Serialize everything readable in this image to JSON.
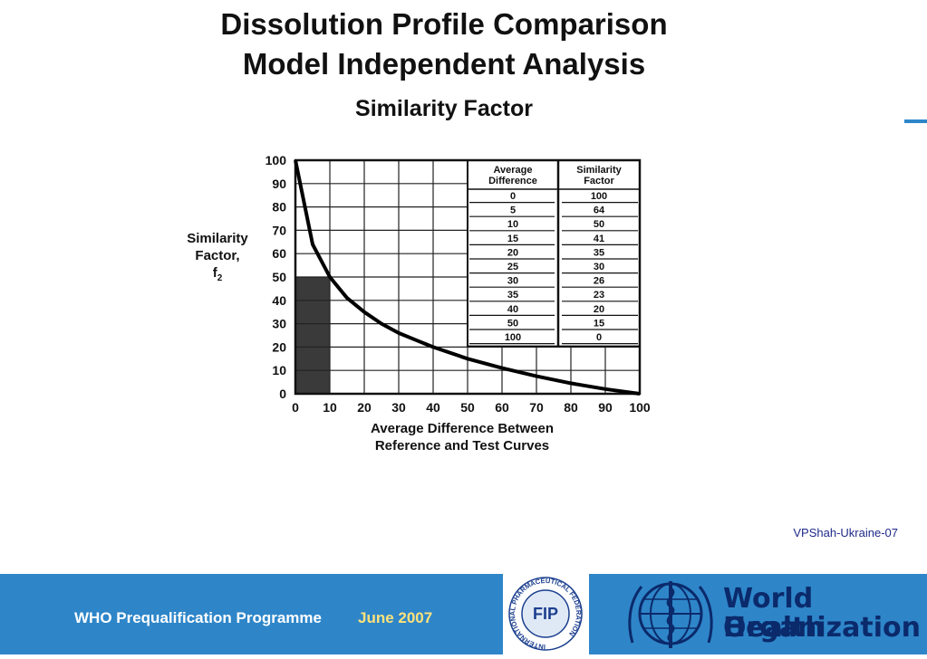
{
  "header": {
    "title_line1": "Dissolution Profile Comparison",
    "title_line2": "Model Independent Analysis",
    "subtitle": "Similarity Factor"
  },
  "chart_data": {
    "type": "line",
    "ylabel_line1": "Similarity",
    "ylabel_line2": "Factor,",
    "ylabel_symbol": "f",
    "ylabel_subscript": "2",
    "xlabel_line1": "Average Difference Between",
    "xlabel_line2": "Reference and Test Curves",
    "xlim": [
      0,
      100
    ],
    "ylim": [
      0,
      100
    ],
    "x_ticks": [
      "0",
      "10",
      "20",
      "30",
      "40",
      "50",
      "60",
      "70",
      "80",
      "90",
      "100"
    ],
    "y_ticks": [
      "0",
      "10",
      "20",
      "30",
      "40",
      "50",
      "60",
      "70",
      "80",
      "90",
      "100"
    ],
    "grid": true,
    "shaded_region": {
      "x": [
        0,
        10
      ],
      "y": [
        0,
        50
      ]
    },
    "curve": {
      "x": [
        0,
        5,
        10,
        15,
        20,
        25,
        30,
        35,
        40,
        50,
        60,
        70,
        80,
        90,
        100
      ],
      "y": [
        100,
        64,
        50,
        41,
        35,
        30,
        26,
        23,
        20,
        15,
        11,
        7.5,
        4.5,
        2,
        0
      ]
    },
    "table": {
      "headers": [
        [
          "Average",
          "Difference"
        ],
        [
          "Similarity",
          "Factor"
        ]
      ],
      "rows": [
        [
          "0",
          "100"
        ],
        [
          "5",
          "64"
        ],
        [
          "10",
          "50"
        ],
        [
          "15",
          "41"
        ],
        [
          "20",
          "35"
        ],
        [
          "25",
          "30"
        ],
        [
          "30",
          "26"
        ],
        [
          "35",
          "23"
        ],
        [
          "40",
          "20"
        ],
        [
          "50",
          "15"
        ],
        [
          "100",
          "0"
        ]
      ]
    }
  },
  "credit": "VPShah-Ukraine-07",
  "footer": {
    "programme": "WHO Prequalification Programme",
    "date": "June 2007",
    "fip_text": "FIP",
    "fip_ring": "INTERNATIONAL PHARMACEUTICAL FEDERATION",
    "who_line1": "World Health",
    "who_line2": "Organization"
  },
  "colors": {
    "footer_bg": "#2e86c9",
    "footer_date": "#ffe27a",
    "who_text": "#0b2a6b",
    "shade": "#3a3a3a"
  }
}
